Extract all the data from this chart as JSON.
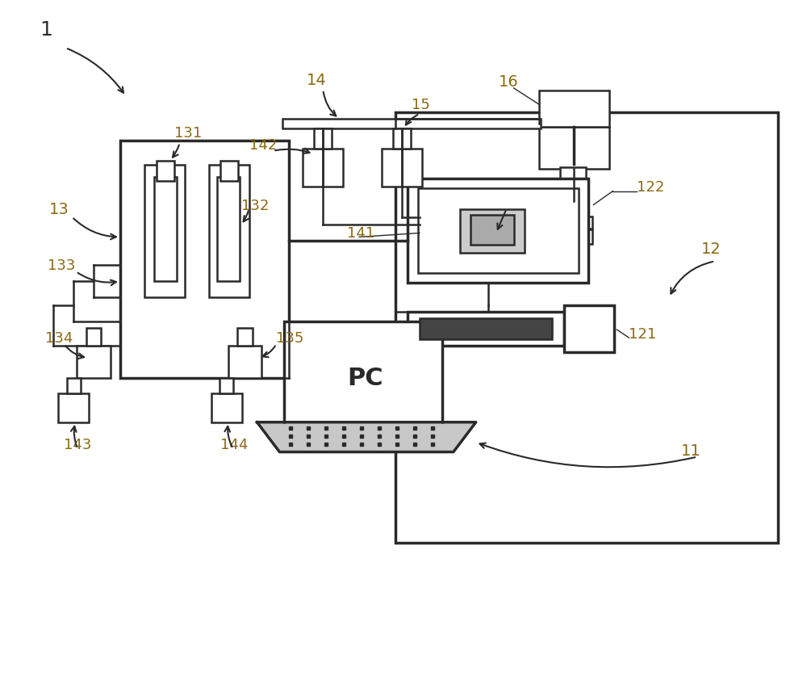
{
  "bg_color": "#ffffff",
  "lc": "#2a2a2a",
  "label_color": "#8B6914",
  "fig_width": 10.0,
  "fig_height": 8.58
}
